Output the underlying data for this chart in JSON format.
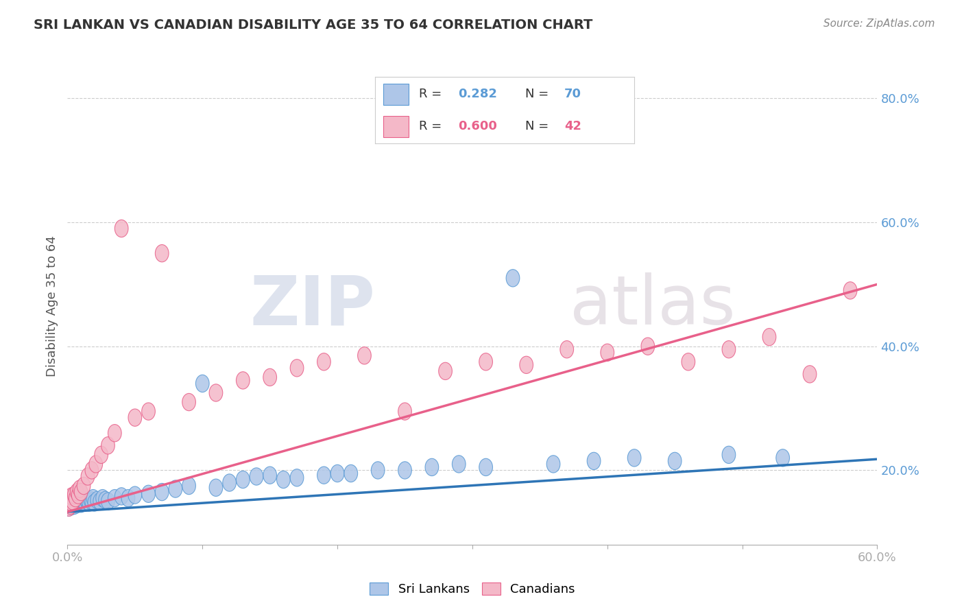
{
  "title": "SRI LANKAN VS CANADIAN DISABILITY AGE 35 TO 64 CORRELATION CHART",
  "source_text": "Source: ZipAtlas.com",
  "ylabel": "Disability Age 35 to 64",
  "xlim": [
    0.0,
    0.6
  ],
  "ylim": [
    0.08,
    0.85
  ],
  "xticks": [
    0.0,
    0.1,
    0.2,
    0.3,
    0.4,
    0.5,
    0.6
  ],
  "xticklabels": [
    "0.0%",
    "",
    "",
    "",
    "",
    "",
    "60.0%"
  ],
  "yticks": [
    0.2,
    0.4,
    0.6,
    0.8
  ],
  "yticklabels": [
    "20.0%",
    "40.0%",
    "60.0%",
    "80.0%"
  ],
  "sri_R": 0.282,
  "sri_N": 70,
  "can_R": 0.6,
  "can_N": 42,
  "sri_color": "#aec6e8",
  "can_color": "#f4b8c8",
  "sri_edge_color": "#5b9bd5",
  "can_edge_color": "#e8608a",
  "sri_line_color": "#2e75b6",
  "can_line_color": "#e8608a",
  "watermark_zip": "ZIP",
  "watermark_atlas": "atlas",
  "legend_label_sri": "Sri Lankans",
  "legend_label_can": "Canadians",
  "sri_x": [
    0.001,
    0.001,
    0.002,
    0.002,
    0.002,
    0.003,
    0.003,
    0.003,
    0.004,
    0.004,
    0.004,
    0.005,
    0.005,
    0.005,
    0.006,
    0.006,
    0.007,
    0.007,
    0.008,
    0.008,
    0.009,
    0.009,
    0.01,
    0.01,
    0.011,
    0.012,
    0.013,
    0.014,
    0.015,
    0.016,
    0.017,
    0.018,
    0.019,
    0.02,
    0.022,
    0.024,
    0.026,
    0.028,
    0.03,
    0.035,
    0.04,
    0.045,
    0.05,
    0.06,
    0.07,
    0.08,
    0.09,
    0.1,
    0.11,
    0.12,
    0.13,
    0.14,
    0.15,
    0.16,
    0.17,
    0.19,
    0.2,
    0.21,
    0.23,
    0.25,
    0.27,
    0.29,
    0.31,
    0.33,
    0.36,
    0.39,
    0.42,
    0.45,
    0.49,
    0.53
  ],
  "sri_y": [
    0.14,
    0.15,
    0.145,
    0.148,
    0.155,
    0.142,
    0.148,
    0.153,
    0.145,
    0.15,
    0.155,
    0.143,
    0.148,
    0.153,
    0.146,
    0.151,
    0.145,
    0.15,
    0.148,
    0.153,
    0.147,
    0.152,
    0.146,
    0.151,
    0.148,
    0.15,
    0.148,
    0.152,
    0.15,
    0.148,
    0.152,
    0.15,
    0.155,
    0.148,
    0.152,
    0.15,
    0.155,
    0.152,
    0.15,
    0.155,
    0.158,
    0.155,
    0.16,
    0.162,
    0.165,
    0.17,
    0.175,
    0.34,
    0.172,
    0.18,
    0.185,
    0.19,
    0.192,
    0.185,
    0.188,
    0.192,
    0.195,
    0.195,
    0.2,
    0.2,
    0.205,
    0.21,
    0.205,
    0.51,
    0.21,
    0.215,
    0.22,
    0.215,
    0.225,
    0.22
  ],
  "can_x": [
    0.001,
    0.002,
    0.002,
    0.003,
    0.003,
    0.004,
    0.005,
    0.006,
    0.007,
    0.008,
    0.009,
    0.01,
    0.012,
    0.015,
    0.018,
    0.021,
    0.025,
    0.03,
    0.035,
    0.04,
    0.05,
    0.06,
    0.07,
    0.09,
    0.11,
    0.13,
    0.15,
    0.17,
    0.19,
    0.22,
    0.25,
    0.28,
    0.31,
    0.34,
    0.37,
    0.4,
    0.43,
    0.46,
    0.49,
    0.52,
    0.55,
    0.58
  ],
  "can_y": [
    0.14,
    0.143,
    0.155,
    0.148,
    0.158,
    0.15,
    0.16,
    0.155,
    0.165,
    0.16,
    0.17,
    0.165,
    0.175,
    0.19,
    0.2,
    0.21,
    0.225,
    0.24,
    0.26,
    0.59,
    0.285,
    0.295,
    0.55,
    0.31,
    0.325,
    0.345,
    0.35,
    0.365,
    0.375,
    0.385,
    0.295,
    0.36,
    0.375,
    0.37,
    0.395,
    0.39,
    0.4,
    0.375,
    0.395,
    0.415,
    0.355,
    0.49
  ],
  "sri_trend_x": [
    0.0,
    0.6
  ],
  "sri_trend_y": [
    0.133,
    0.218
  ],
  "can_trend_x": [
    0.0,
    0.6
  ],
  "can_trend_y": [
    0.133,
    0.5
  ]
}
